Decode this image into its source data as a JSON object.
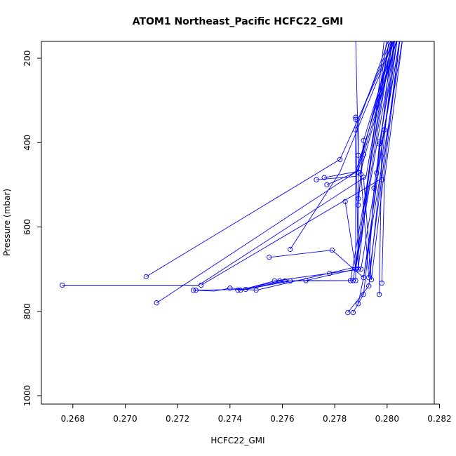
{
  "chart_data": {
    "type": "line",
    "title": "ATOM1 Northeast_Pacific HCFC22_GMI",
    "xlabel": "HCFC22_GMI",
    "ylabel": "Pressure (mbar)",
    "xlim": [
      0.2668,
      0.2818
    ],
    "ylim": [
      1020,
      160
    ],
    "y_reversed": true,
    "x_ticks": [
      0.268,
      0.27,
      0.272,
      0.274,
      0.276,
      0.278,
      0.28,
      0.282
    ],
    "x_tick_labels": [
      "0.268",
      "0.270",
      "0.272",
      "0.274",
      "0.276",
      "0.278",
      "0.280",
      "0.282"
    ],
    "y_ticks": [
      200,
      400,
      600,
      800,
      1000
    ],
    "y_tick_labels": [
      "200",
      "400",
      "600",
      "800",
      "1000"
    ],
    "series_color": "#0000ff",
    "segments": [
      {
        "x": [
          0.2676,
          0.2728,
          0.2792,
          0.2801
        ],
        "y": [
          738,
          738,
          480,
          150
        ]
      },
      {
        "x": [
          0.2708,
          0.2782,
          0.2803
        ],
        "y": [
          718,
          440,
          150
        ]
      },
      {
        "x": [
          0.2712,
          0.2788,
          0.2804
        ],
        "y": [
          780,
          470,
          150
        ]
      },
      {
        "x": [
          0.2729,
          0.2798,
          0.2805
        ],
        "y": [
          738,
          485,
          150
        ]
      },
      {
        "x": [
          0.2755,
          0.2779,
          0.2791,
          0.2806
        ],
        "y": [
          672,
          655,
          720,
          150
        ]
      },
      {
        "x": [
          0.2773,
          0.2788,
          0.2803
        ],
        "y": [
          488,
          480,
          150
        ]
      },
      {
        "x": [
          0.2776,
          0.2789,
          0.2802
        ],
        "y": [
          483,
          468,
          150
        ]
      },
      {
        "x": [
          0.2777,
          0.279,
          0.2804
        ],
        "y": [
          500,
          465,
          150
        ]
      },
      {
        "x": [
          0.2763,
          0.2782,
          0.2803
        ],
        "y": [
          653,
          470,
          150
        ]
      },
      {
        "x": [
          0.2726,
          0.2734,
          0.274,
          0.275,
          0.2788,
          0.28
        ],
        "y": [
          750,
          752,
          745,
          750,
          695,
          150
        ]
      },
      {
        "x": [
          0.2727,
          0.2745,
          0.2757,
          0.2778,
          0.279,
          0.2805
        ],
        "y": [
          750,
          748,
          728,
          710,
          700,
          150
        ]
      },
      {
        "x": [
          0.2743,
          0.2759,
          0.2769,
          0.2787,
          0.2801
        ],
        "y": [
          750,
          728,
          727,
          727,
          150
        ]
      },
      {
        "x": [
          0.2744,
          0.2761,
          0.2763,
          0.2786,
          0.2802
        ],
        "y": [
          750,
          728,
          728,
          727,
          150
        ]
      },
      {
        "x": [
          0.2746,
          0.2763,
          0.2769,
          0.2788,
          0.2803
        ],
        "y": [
          748,
          728,
          727,
          700,
          150
        ]
      },
      {
        "x": [
          0.2784,
          0.2788,
          0.2802
        ],
        "y": [
          540,
          700,
          150
        ]
      },
      {
        "x": [
          0.2785,
          0.2793,
          0.2803
        ],
        "y": [
          803,
          740,
          150
        ]
      },
      {
        "x": [
          0.2787,
          0.2791,
          0.2802
        ],
        "y": [
          803,
          760,
          150
        ]
      },
      {
        "x": [
          0.2788,
          0.2788,
          0.2801
        ],
        "y": [
          727,
          370,
          150
        ]
      },
      {
        "x": [
          0.2788,
          0.2789,
          0.2799
        ],
        "y": [
          340,
          700,
          150
        ]
      },
      {
        "x": [
          0.2789,
          0.2791,
          0.2804
        ],
        "y": [
          782,
          720,
          150
        ]
      },
      {
        "x": [
          0.2789,
          0.2789,
          0.2802
        ],
        "y": [
          700,
          345,
          150
        ]
      },
      {
        "x": [
          0.2789,
          0.2788,
          0.2796
        ],
        "y": [
          430,
          150,
          150
        ]
      },
      {
        "x": [
          0.2789,
          0.2791,
          0.2803
        ],
        "y": [
          548,
          395,
          150
        ]
      },
      {
        "x": [
          0.2789,
          0.2791,
          0.2804
        ],
        "y": [
          533,
          428,
          150
        ]
      },
      {
        "x": [
          0.279,
          0.2793,
          0.2805
        ],
        "y": [
          475,
          720,
          150
        ]
      },
      {
        "x": [
          0.2791,
          0.2794,
          0.2805
        ],
        "y": [
          482,
          725,
          150
        ]
      },
      {
        "x": [
          0.2793,
          0.2795,
          0.2803
        ],
        "y": [
          700,
          508,
          150
        ]
      },
      {
        "x": [
          0.2796,
          0.2797,
          0.2804
        ],
        "y": [
          472,
          403,
          150
        ]
      },
      {
        "x": [
          0.2797,
          0.2798,
          0.2805
        ],
        "y": [
          760,
          398,
          150
        ]
      },
      {
        "x": [
          0.2798,
          0.2799,
          0.2806
        ],
        "y": [
          733,
          488,
          150
        ]
      },
      {
        "x": [
          0.2799,
          0.2804
        ],
        "y": [
          370,
          150
        ]
      }
    ],
    "points": [
      {
        "x": 0.2676,
        "y": 738
      },
      {
        "x": 0.2708,
        "y": 718
      },
      {
        "x": 0.2712,
        "y": 780
      },
      {
        "x": 0.2726,
        "y": 750
      },
      {
        "x": 0.2727,
        "y": 750
      },
      {
        "x": 0.2729,
        "y": 738
      },
      {
        "x": 0.274,
        "y": 745
      },
      {
        "x": 0.2743,
        "y": 750
      },
      {
        "x": 0.2744,
        "y": 750
      },
      {
        "x": 0.2746,
        "y": 748
      },
      {
        "x": 0.275,
        "y": 750
      },
      {
        "x": 0.2755,
        "y": 672
      },
      {
        "x": 0.2757,
        "y": 728
      },
      {
        "x": 0.2759,
        "y": 728
      },
      {
        "x": 0.2761,
        "y": 728
      },
      {
        "x": 0.2763,
        "y": 728
      },
      {
        "x": 0.2763,
        "y": 653
      },
      {
        "x": 0.2769,
        "y": 727
      },
      {
        "x": 0.2773,
        "y": 488
      },
      {
        "x": 0.2776,
        "y": 483
      },
      {
        "x": 0.2777,
        "y": 500
      },
      {
        "x": 0.2778,
        "y": 710
      },
      {
        "x": 0.2779,
        "y": 655
      },
      {
        "x": 0.2782,
        "y": 440
      },
      {
        "x": 0.2784,
        "y": 540
      },
      {
        "x": 0.2785,
        "y": 803
      },
      {
        "x": 0.2786,
        "y": 727
      },
      {
        "x": 0.2787,
        "y": 803
      },
      {
        "x": 0.2787,
        "y": 727
      },
      {
        "x": 0.2788,
        "y": 700
      },
      {
        "x": 0.2788,
        "y": 727
      },
      {
        "x": 0.2788,
        "y": 370
      },
      {
        "x": 0.2788,
        "y": 340
      },
      {
        "x": 0.2788,
        "y": 345
      },
      {
        "x": 0.2789,
        "y": 430
      },
      {
        "x": 0.2789,
        "y": 470
      },
      {
        "x": 0.2789,
        "y": 700
      },
      {
        "x": 0.2789,
        "y": 782
      },
      {
        "x": 0.2789,
        "y": 548
      },
      {
        "x": 0.2789,
        "y": 533
      },
      {
        "x": 0.279,
        "y": 475
      },
      {
        "x": 0.279,
        "y": 700
      },
      {
        "x": 0.2791,
        "y": 395
      },
      {
        "x": 0.2791,
        "y": 428
      },
      {
        "x": 0.2791,
        "y": 482
      },
      {
        "x": 0.2791,
        "y": 760
      },
      {
        "x": 0.2791,
        "y": 720
      },
      {
        "x": 0.2793,
        "y": 720
      },
      {
        "x": 0.2793,
        "y": 740
      },
      {
        "x": 0.2794,
        "y": 725
      },
      {
        "x": 0.2795,
        "y": 508
      },
      {
        "x": 0.2796,
        "y": 472
      },
      {
        "x": 0.2797,
        "y": 403
      },
      {
        "x": 0.2797,
        "y": 398
      },
      {
        "x": 0.2797,
        "y": 760
      },
      {
        "x": 0.2798,
        "y": 733
      },
      {
        "x": 0.2798,
        "y": 488
      },
      {
        "x": 0.2799,
        "y": 370
      }
    ]
  }
}
